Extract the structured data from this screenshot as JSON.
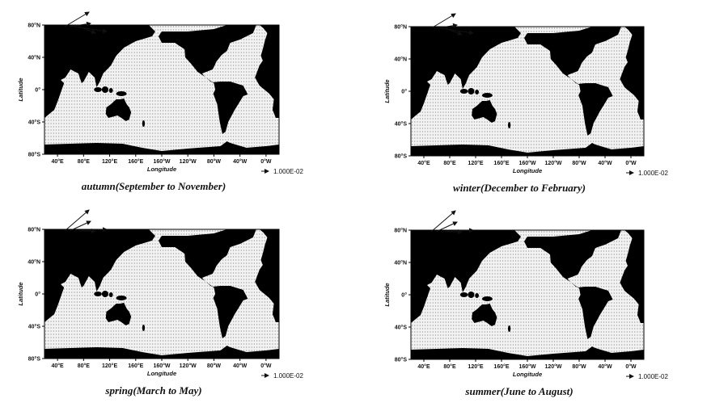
{
  "panels": [
    {
      "caption": "autumn(September to November)",
      "xlabel": "Longitude",
      "ylabel": "Latitude",
      "reference": "1.000E-02",
      "xticks": [
        "40°E",
        "80°E",
        "120°E",
        "160°E",
        "160°W",
        "120°W",
        "80°W",
        "40°W",
        "0°W"
      ],
      "yticks": [
        "80°N",
        "40°N",
        "0°",
        "40°S",
        "80°S"
      ]
    },
    {
      "caption": "winter(December to February)",
      "xlabel": "Longitude",
      "ylabel": "Latitude",
      "reference": "1.000E-02",
      "xticks": [
        "40°E",
        "80°E",
        "120°E",
        "160°E",
        "160°W",
        "120°W",
        "80°W",
        "40°W",
        "0°W"
      ],
      "yticks": [
        "80°N",
        "40°N",
        "0°",
        "40°S",
        "80°S"
      ]
    },
    {
      "caption": "spring(March to May)",
      "xlabel": "Longitude",
      "ylabel": "Latitude",
      "reference": "1.000E-02",
      "xticks": [
        "40°E",
        "80°E",
        "120°E",
        "160°E",
        "160°W",
        "120°W",
        "80°W",
        "40°W",
        "0°W"
      ],
      "yticks": [
        "80°N",
        "40°N",
        "0°",
        "40°S",
        "80°S"
      ]
    },
    {
      "caption": "summer(June to August)",
      "xlabel": "Longitude",
      "ylabel": "Latitude",
      "reference": "1.000E-02",
      "xticks": [
        "40°E",
        "80°E",
        "120°E",
        "160°E",
        "160°W",
        "120°W",
        "80°W",
        "40°W",
        "0°W"
      ],
      "yticks": [
        "80°N",
        "40°N",
        "0°",
        "40°S",
        "80°S"
      ]
    }
  ]
}
